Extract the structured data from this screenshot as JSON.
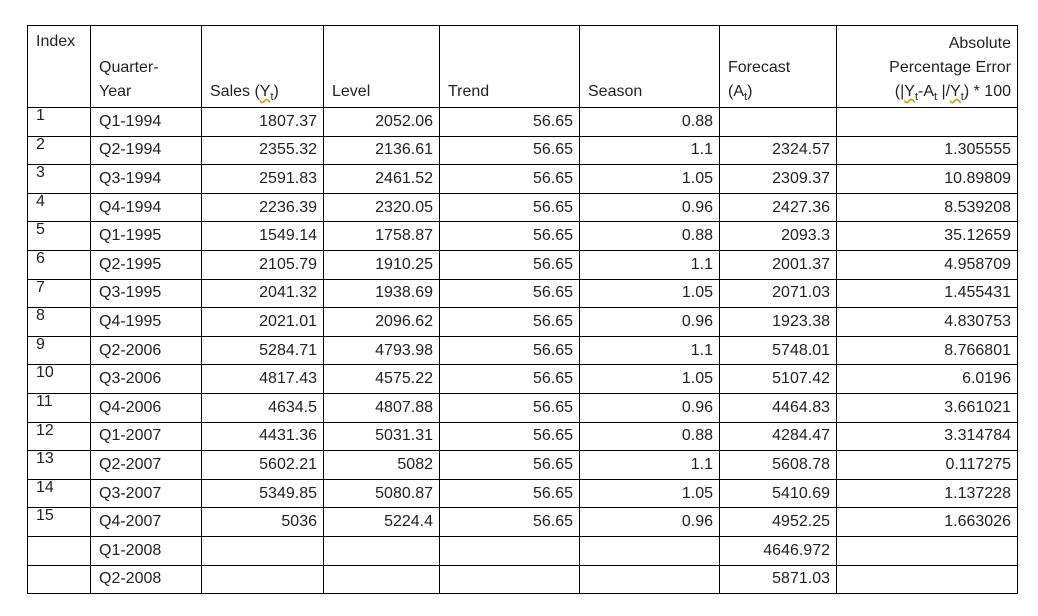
{
  "headers": {
    "index": "Index",
    "quarter_line1": "Quarter-",
    "quarter_line2": "Year",
    "sales_prefix": "Sales (",
    "sales_var": "Y",
    "sales_sub": "t",
    "sales_suffix": ")",
    "level": "Level",
    "trend": "Trend",
    "season": "Season",
    "forecast_line1": "Forecast",
    "forecast_line2_prefix": "(A",
    "forecast_line2_sub": "t",
    "forecast_line2_suffix": ")",
    "ape_line1": "Absolute",
    "ape_line2": "Percentage Error",
    "ape_line3_a": "(|",
    "ape_line3_y1": "Y",
    "ape_line3_y1_sub": "t",
    "ape_line3_b": "-A",
    "ape_line3_a_sub": "t",
    "ape_line3_c": " |/",
    "ape_line3_y2": "Y",
    "ape_line3_y2_sub": "t",
    "ape_line3_d": ") * 100"
  },
  "rows": [
    {
      "index": "1",
      "quarter": "Q1-1994",
      "sales": "1807.37",
      "level": "2052.06",
      "trend": "56.65",
      "season": "0.88",
      "forecast": "",
      "ape": ""
    },
    {
      "index": "2",
      "quarter": "Q2-1994",
      "sales": "2355.32",
      "level": "2136.61",
      "trend": "56.65",
      "season": "1.1",
      "forecast": "2324.57",
      "ape": "1.305555"
    },
    {
      "index": "3",
      "quarter": "Q3-1994",
      "sales": "2591.83",
      "level": "2461.52",
      "trend": "56.65",
      "season": "1.05",
      "forecast": "2309.37",
      "ape": "10.89809"
    },
    {
      "index": "4",
      "quarter": "Q4-1994",
      "sales": "2236.39",
      "level": "2320.05",
      "trend": "56.65",
      "season": "0.96",
      "forecast": "2427.36",
      "ape": "8.539208"
    },
    {
      "index": "5",
      "quarter": "Q1-1995",
      "sales": "1549.14",
      "level": "1758.87",
      "trend": "56.65",
      "season": "0.88",
      "forecast": "2093.3",
      "ape": "35.12659"
    },
    {
      "index": "6",
      "quarter": "Q2-1995",
      "sales": "2105.79",
      "level": "1910.25",
      "trend": "56.65",
      "season": "1.1",
      "forecast": "2001.37",
      "ape": "4.958709"
    },
    {
      "index": "7",
      "quarter": "Q3-1995",
      "sales": "2041.32",
      "level": "1938.69",
      "trend": "56.65",
      "season": "1.05",
      "forecast": "2071.03",
      "ape": "1.455431"
    },
    {
      "index": "8",
      "quarter": "Q4-1995",
      "sales": "2021.01",
      "level": "2096.62",
      "trend": "56.65",
      "season": "0.96",
      "forecast": "1923.38",
      "ape": "4.830753"
    },
    {
      "index": "9",
      "quarter": "Q2-2006",
      "sales": "5284.71",
      "level": "4793.98",
      "trend": "56.65",
      "season": "1.1",
      "forecast": "5748.01",
      "ape": "8.766801"
    },
    {
      "index": "10",
      "quarter": "Q3-2006",
      "sales": "4817.43",
      "level": "4575.22",
      "trend": "56.65",
      "season": "1.05",
      "forecast": "5107.42",
      "ape": "6.0196"
    },
    {
      "index": "11",
      "quarter": "Q4-2006",
      "sales": "4634.5",
      "level": "4807.88",
      "trend": "56.65",
      "season": "0.96",
      "forecast": "4464.83",
      "ape": "3.661021"
    },
    {
      "index": "12",
      "quarter": "Q1-2007",
      "sales": "4431.36",
      "level": "5031.31",
      "trend": "56.65",
      "season": "0.88",
      "forecast": "4284.47",
      "ape": "3.314784"
    },
    {
      "index": "13",
      "quarter": "Q2-2007",
      "sales": "5602.21",
      "level": "5082",
      "trend": "56.65",
      "season": "1.1",
      "forecast": "5608.78",
      "ape": "0.117275"
    },
    {
      "index": "14",
      "quarter": "Q3-2007",
      "sales": "5349.85",
      "level": "5080.87",
      "trend": "56.65",
      "season": "1.05",
      "forecast": "5410.69",
      "ape": "1.137228"
    },
    {
      "index": "15",
      "quarter": "Q4-2007",
      "sales": "5036",
      "level": "5224.4",
      "trend": "56.65",
      "season": "0.96",
      "forecast": "4952.25",
      "ape": "1.663026"
    },
    {
      "index": "",
      "quarter": "Q1-2008",
      "sales": "",
      "level": "",
      "trend": "",
      "season": "",
      "forecast": "4646.972",
      "ape": ""
    },
    {
      "index": "",
      "quarter": "Q2-2008",
      "sales": "",
      "level": "",
      "trend": "",
      "season": "",
      "forecast": "5871.03",
      "ape": ""
    }
  ]
}
